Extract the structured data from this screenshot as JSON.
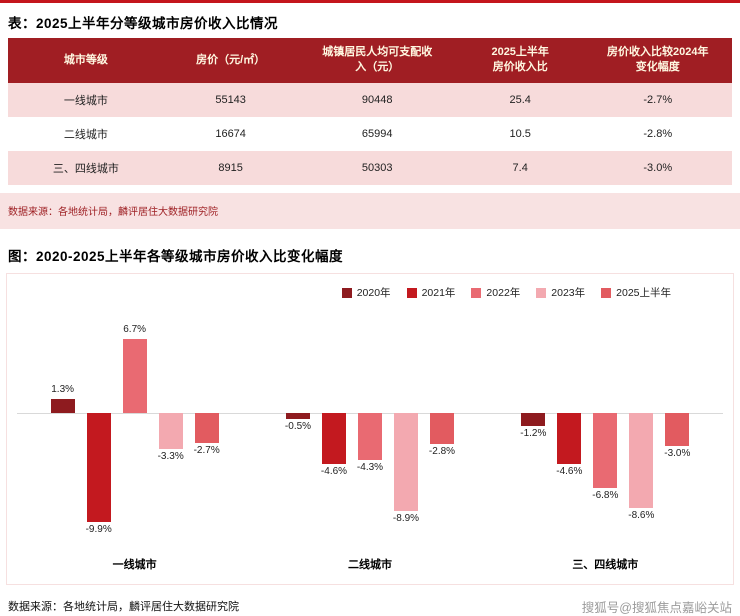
{
  "table_section": {
    "title": "表：2025上半年分等级城市房价收入比情况",
    "columns": [
      "城市等级",
      "房价（元/㎡）",
      "城镇居民人均可支配收\n入（元）",
      "2025上半年\n房价收入比",
      "房价收入比较2024年\n变化幅度"
    ],
    "rows": [
      [
        "一线城市",
        "55143",
        "90448",
        "25.4",
        "-2.7%"
      ],
      [
        "二线城市",
        "16674",
        "65994",
        "10.5",
        "-2.8%"
      ],
      [
        "三、四线城市",
        "8915",
        "50303",
        "7.4",
        "-3.0%"
      ]
    ],
    "source": "数据来源：各地统计局，麟评居住大数据研究院"
  },
  "chart_section": {
    "title": "图：2020-2025上半年各等级城市房价收入比变化幅度",
    "source": "数据来源：各地统计局，麟评居住大数据研究院"
  },
  "chart_data": {
    "type": "bar",
    "title": "2020-2025上半年各等级城市房价收入比变化幅度",
    "categories": [
      "一线城市",
      "二线城市",
      "三、四线城市"
    ],
    "series": [
      {
        "name": "2020年",
        "color": "#8E1B1F",
        "values": [
          1.3,
          -0.5,
          -1.2
        ]
      },
      {
        "name": "2021年",
        "color": "#C3191F",
        "values": [
          -9.9,
          -4.6,
          -4.6
        ]
      },
      {
        "name": "2022年",
        "color": "#E96A72",
        "values": [
          6.7,
          -4.3,
          -6.8
        ]
      },
      {
        "name": "2023年",
        "color": "#F3A9B0",
        "values": [
          -3.3,
          -8.9,
          -8.6
        ]
      },
      {
        "name": "2025上半年",
        "color": "#E25B60",
        "values": [
          -2.7,
          -2.8,
          -3.0
        ]
      }
    ],
    "value_suffix": "%",
    "ylim": [
      -11,
      8
    ],
    "legend_position": "top-right",
    "grid": false,
    "zero_line": true
  },
  "colors": {
    "accent_red": "#C4161C",
    "table_header_bg": "#A01E23",
    "table_header_text": "#FFF8E1",
    "row_alt_bg": "#F7DBDB",
    "source_band_bg": "#F8E2E2",
    "source_text": "#9E2024"
  },
  "footer": {
    "watermark": "搜狐号@搜狐焦点嘉峪关站"
  }
}
